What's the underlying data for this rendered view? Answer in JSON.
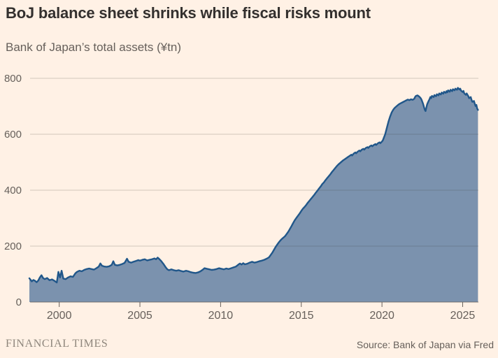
{
  "header": {
    "title": "BoJ balance sheet shrinks while fiscal risks mount",
    "subtitle": "Bank of Japan’s total assets (¥tn)"
  },
  "footer": {
    "brand": "FINANCIAL TIMES",
    "source": "Source: Bank of Japan via Fred"
  },
  "colors": {
    "background": "#fff1e5",
    "title_text": "#33302e",
    "muted_text": "#66605b",
    "brand_text": "#8e867c",
    "line": "#21578a",
    "fill": "#7b92ae",
    "grid": "#33302e",
    "axis": "#66605b"
  },
  "chart_data": {
    "type": "area",
    "title": "BoJ balance sheet shrinks while fiscal risks mount",
    "subtitle": "Bank of Japan’s total assets (¥tn)",
    "xlabel": "",
    "ylabel": "¥tn",
    "x_ticks": [
      2000,
      2005,
      2010,
      2015,
      2020,
      2025
    ],
    "y_ticks": [
      0,
      200,
      400,
      600,
      800
    ],
    "x_range": [
      1998.15,
      2025.95
    ],
    "y_range": [
      0,
      800
    ],
    "grid": "horizontal",
    "legend": "none",
    "series": [
      {
        "name": "BoJ total assets",
        "points": [
          [
            1998.15,
            85
          ],
          [
            1998.3,
            74
          ],
          [
            1998.4,
            79
          ],
          [
            1998.5,
            76
          ],
          [
            1998.6,
            71
          ],
          [
            1998.7,
            77
          ],
          [
            1998.8,
            88
          ],
          [
            1998.9,
            96
          ],
          [
            1999.0,
            86
          ],
          [
            1999.1,
            82
          ],
          [
            1999.25,
            86
          ],
          [
            1999.4,
            78
          ],
          [
            1999.55,
            81
          ],
          [
            1999.7,
            76
          ],
          [
            1999.85,
            70
          ],
          [
            1999.95,
            108
          ],
          [
            2000.05,
            88
          ],
          [
            2000.15,
            112
          ],
          [
            2000.25,
            84
          ],
          [
            2000.4,
            82
          ],
          [
            2000.55,
            88
          ],
          [
            2000.7,
            92
          ],
          [
            2000.85,
            90
          ],
          [
            2001.0,
            103
          ],
          [
            2001.1,
            108
          ],
          [
            2001.25,
            112
          ],
          [
            2001.4,
            110
          ],
          [
            2001.55,
            115
          ],
          [
            2001.7,
            118
          ],
          [
            2001.85,
            120
          ],
          [
            2002.0,
            118
          ],
          [
            2002.15,
            116
          ],
          [
            2002.3,
            121
          ],
          [
            2002.45,
            127
          ],
          [
            2002.55,
            138
          ],
          [
            2002.65,
            130
          ],
          [
            2002.8,
            127
          ],
          [
            2002.95,
            126
          ],
          [
            2003.1,
            128
          ],
          [
            2003.25,
            133
          ],
          [
            2003.35,
            146
          ],
          [
            2003.45,
            133
          ],
          [
            2003.6,
            131
          ],
          [
            2003.75,
            133
          ],
          [
            2003.9,
            136
          ],
          [
            2004.05,
            140
          ],
          [
            2004.2,
            155
          ],
          [
            2004.3,
            144
          ],
          [
            2004.45,
            141
          ],
          [
            2004.6,
            144
          ],
          [
            2004.75,
            147
          ],
          [
            2004.9,
            150
          ],
          [
            2005.0,
            148
          ],
          [
            2005.15,
            151
          ],
          [
            2005.3,
            153
          ],
          [
            2005.45,
            149
          ],
          [
            2005.6,
            151
          ],
          [
            2005.75,
            153
          ],
          [
            2005.9,
            156
          ],
          [
            2006.0,
            153
          ],
          [
            2006.1,
            159
          ],
          [
            2006.2,
            154
          ],
          [
            2006.3,
            148
          ],
          [
            2006.45,
            137
          ],
          [
            2006.6,
            124
          ],
          [
            2006.7,
            117
          ],
          [
            2006.8,
            114
          ],
          [
            2006.95,
            117
          ],
          [
            2007.1,
            114
          ],
          [
            2007.25,
            112
          ],
          [
            2007.4,
            114
          ],
          [
            2007.55,
            111
          ],
          [
            2007.7,
            109
          ],
          [
            2007.85,
            112
          ],
          [
            2008.0,
            110
          ],
          [
            2008.15,
            107
          ],
          [
            2008.3,
            105
          ],
          [
            2008.45,
            104
          ],
          [
            2008.6,
            106
          ],
          [
            2008.75,
            110
          ],
          [
            2008.9,
            116
          ],
          [
            2009.0,
            121
          ],
          [
            2009.15,
            119
          ],
          [
            2009.3,
            117
          ],
          [
            2009.45,
            115
          ],
          [
            2009.6,
            116
          ],
          [
            2009.75,
            118
          ],
          [
            2009.9,
            121
          ],
          [
            2010.05,
            119
          ],
          [
            2010.2,
            117
          ],
          [
            2010.35,
            120
          ],
          [
            2010.5,
            118
          ],
          [
            2010.65,
            121
          ],
          [
            2010.8,
            124
          ],
          [
            2010.95,
            127
          ],
          [
            2011.1,
            134
          ],
          [
            2011.2,
            138
          ],
          [
            2011.3,
            134
          ],
          [
            2011.4,
            139
          ],
          [
            2011.5,
            135
          ],
          [
            2011.65,
            137
          ],
          [
            2011.8,
            141
          ],
          [
            2011.95,
            144
          ],
          [
            2012.1,
            141
          ],
          [
            2012.25,
            143
          ],
          [
            2012.4,
            146
          ],
          [
            2012.55,
            148
          ],
          [
            2012.7,
            151
          ],
          [
            2012.85,
            155
          ],
          [
            2013.0,
            160
          ],
          [
            2013.1,
            168
          ],
          [
            2013.2,
            176
          ],
          [
            2013.3,
            186
          ],
          [
            2013.4,
            196
          ],
          [
            2013.5,
            205
          ],
          [
            2013.6,
            213
          ],
          [
            2013.7,
            220
          ],
          [
            2013.8,
            226
          ],
          [
            2013.9,
            231
          ],
          [
            2014.0,
            236
          ],
          [
            2014.1,
            244
          ],
          [
            2014.2,
            252
          ],
          [
            2014.3,
            262
          ],
          [
            2014.4,
            272
          ],
          [
            2014.5,
            283
          ],
          [
            2014.6,
            293
          ],
          [
            2014.7,
            301
          ],
          [
            2014.8,
            309
          ],
          [
            2014.9,
            317
          ],
          [
            2015.0,
            326
          ],
          [
            2015.1,
            334
          ],
          [
            2015.2,
            340
          ],
          [
            2015.3,
            347
          ],
          [
            2015.4,
            355
          ],
          [
            2015.5,
            362
          ],
          [
            2015.6,
            369
          ],
          [
            2015.7,
            376
          ],
          [
            2015.8,
            383
          ],
          [
            2015.9,
            391
          ],
          [
            2016.0,
            398
          ],
          [
            2016.1,
            406
          ],
          [
            2016.2,
            413
          ],
          [
            2016.3,
            422
          ],
          [
            2016.4,
            428
          ],
          [
            2016.5,
            436
          ],
          [
            2016.6,
            443
          ],
          [
            2016.7,
            450
          ],
          [
            2016.8,
            457
          ],
          [
            2016.9,
            465
          ],
          [
            2017.0,
            472
          ],
          [
            2017.1,
            479
          ],
          [
            2017.2,
            486
          ],
          [
            2017.3,
            492
          ],
          [
            2017.4,
            497
          ],
          [
            2017.5,
            502
          ],
          [
            2017.6,
            507
          ],
          [
            2017.7,
            511
          ],
          [
            2017.8,
            515
          ],
          [
            2017.9,
            519
          ],
          [
            2018.0,
            523
          ],
          [
            2018.1,
            527
          ],
          [
            2018.15,
            524
          ],
          [
            2018.25,
            531
          ],
          [
            2018.35,
            535
          ],
          [
            2018.4,
            532
          ],
          [
            2018.5,
            538
          ],
          [
            2018.6,
            542
          ],
          [
            2018.65,
            539
          ],
          [
            2018.75,
            545
          ],
          [
            2018.85,
            548
          ],
          [
            2018.9,
            545
          ],
          [
            2019.0,
            551
          ],
          [
            2019.1,
            554
          ],
          [
            2019.15,
            551
          ],
          [
            2019.25,
            557
          ],
          [
            2019.35,
            560
          ],
          [
            2019.4,
            557
          ],
          [
            2019.5,
            562
          ],
          [
            2019.6,
            565
          ],
          [
            2019.65,
            562
          ],
          [
            2019.75,
            568
          ],
          [
            2019.85,
            571
          ],
          [
            2019.9,
            568
          ],
          [
            2020.0,
            574
          ],
          [
            2020.05,
            578
          ],
          [
            2020.1,
            585
          ],
          [
            2020.2,
            600
          ],
          [
            2020.3,
            622
          ],
          [
            2020.4,
            645
          ],
          [
            2020.5,
            663
          ],
          [
            2020.6,
            678
          ],
          [
            2020.7,
            688
          ],
          [
            2020.8,
            695
          ],
          [
            2020.9,
            700
          ],
          [
            2021.0,
            705
          ],
          [
            2021.1,
            709
          ],
          [
            2021.2,
            712
          ],
          [
            2021.3,
            715
          ],
          [
            2021.4,
            718
          ],
          [
            2021.5,
            721
          ],
          [
            2021.6,
            724
          ],
          [
            2021.7,
            722
          ],
          [
            2021.8,
            725
          ],
          [
            2021.9,
            723
          ],
          [
            2022.0,
            727
          ],
          [
            2022.05,
            733
          ],
          [
            2022.1,
            737
          ],
          [
            2022.2,
            739
          ],
          [
            2022.3,
            735
          ],
          [
            2022.4,
            729
          ],
          [
            2022.45,
            724
          ],
          [
            2022.5,
            716
          ],
          [
            2022.55,
            708
          ],
          [
            2022.6,
            698
          ],
          [
            2022.65,
            688
          ],
          [
            2022.7,
            683
          ],
          [
            2022.75,
            696
          ],
          [
            2022.8,
            707
          ],
          [
            2022.85,
            714
          ],
          [
            2022.9,
            720
          ],
          [
            2022.95,
            726
          ],
          [
            2023.0,
            733
          ],
          [
            2023.05,
            729
          ],
          [
            2023.1,
            737
          ],
          [
            2023.2,
            733
          ],
          [
            2023.25,
            740
          ],
          [
            2023.35,
            736
          ],
          [
            2023.4,
            743
          ],
          [
            2023.5,
            739
          ],
          [
            2023.55,
            746
          ],
          [
            2023.65,
            742
          ],
          [
            2023.7,
            749
          ],
          [
            2023.8,
            745
          ],
          [
            2023.85,
            752
          ],
          [
            2023.95,
            748
          ],
          [
            2024.0,
            754
          ],
          [
            2024.05,
            750
          ],
          [
            2024.1,
            757
          ],
          [
            2024.2,
            752
          ],
          [
            2024.25,
            759
          ],
          [
            2024.35,
            754
          ],
          [
            2024.4,
            761
          ],
          [
            2024.5,
            757
          ],
          [
            2024.55,
            763
          ],
          [
            2024.65,
            759
          ],
          [
            2024.7,
            766
          ],
          [
            2024.8,
            760
          ],
          [
            2024.85,
            763
          ],
          [
            2024.9,
            756
          ],
          [
            2025.0,
            751
          ],
          [
            2025.05,
            755
          ],
          [
            2025.1,
            746
          ],
          [
            2025.2,
            741
          ],
          [
            2025.25,
            746
          ],
          [
            2025.35,
            736
          ],
          [
            2025.4,
            729
          ],
          [
            2025.5,
            733
          ],
          [
            2025.55,
            723
          ],
          [
            2025.6,
            716
          ],
          [
            2025.7,
            719
          ],
          [
            2025.75,
            709
          ],
          [
            2025.8,
            701
          ],
          [
            2025.85,
            705
          ],
          [
            2025.9,
            692
          ],
          [
            2025.95,
            687
          ]
        ]
      }
    ]
  }
}
